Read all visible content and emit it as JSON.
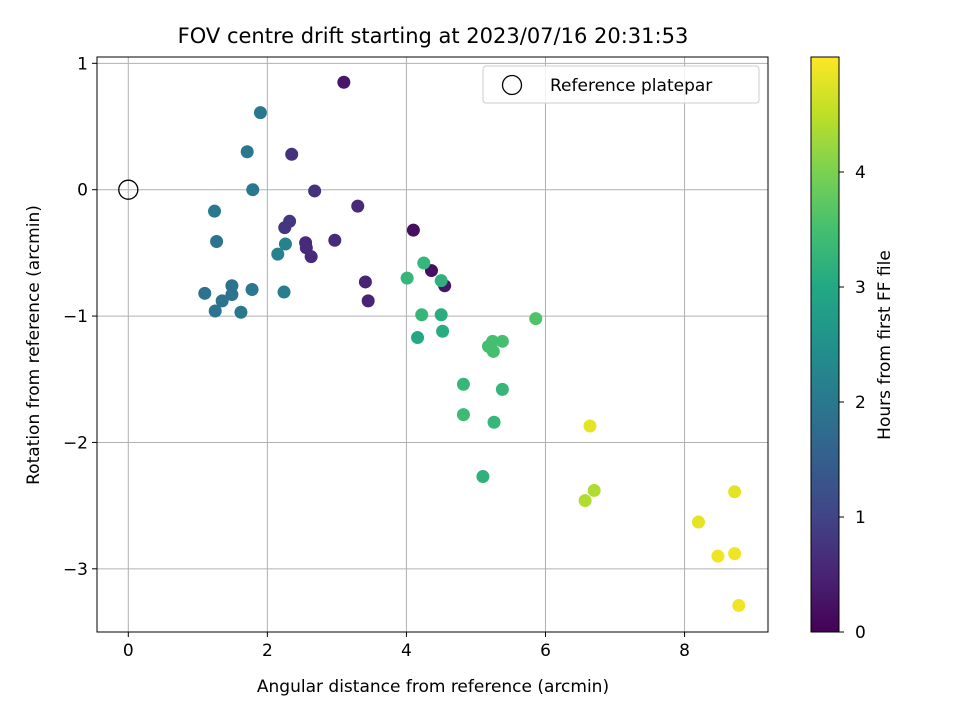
{
  "chart_data": {
    "type": "scatter",
    "title": "FOV centre drift starting at 2023/07/16 20:31:53",
    "xlabel": "Angular distance from reference (arcmin)",
    "ylabel": "Rotation from reference (arcmin)",
    "xlim": [
      -0.45,
      9.2
    ],
    "ylim": [
      -3.5,
      1.05
    ],
    "xticks": [
      0,
      2,
      4,
      6,
      8
    ],
    "yticks": [
      -3,
      -2,
      -1,
      0,
      1
    ],
    "xtick_labels": [
      "0",
      "2",
      "4",
      "6",
      "8"
    ],
    "ytick_labels": [
      "−3",
      "−2",
      "−1",
      "0",
      "1"
    ],
    "grid": true,
    "legend": {
      "placement": "top-right",
      "entries": [
        "Reference platepar"
      ]
    },
    "reference_point": {
      "x": 0,
      "y": 0,
      "marker": "open-circle"
    },
    "colormap": "viridis",
    "colorbar": {
      "label": "Hours from first FF file",
      "range": [
        0,
        5
      ],
      "ticks": [
        0,
        1,
        2,
        3,
        4
      ],
      "tick_labels": [
        "0",
        "1",
        "2",
        "3",
        "4"
      ]
    },
    "points": [
      {
        "x": 3.1,
        "y": 0.85,
        "h": 0.3
      },
      {
        "x": 2.35,
        "y": 0.28,
        "h": 0.7
      },
      {
        "x": 2.68,
        "y": -0.01,
        "h": 0.7
      },
      {
        "x": 3.3,
        "y": -0.13,
        "h": 0.6
      },
      {
        "x": 2.32,
        "y": -0.25,
        "h": 0.8
      },
      {
        "x": 2.25,
        "y": -0.3,
        "h": 0.8
      },
      {
        "x": 2.55,
        "y": -0.42,
        "h": 0.6
      },
      {
        "x": 2.56,
        "y": -0.46,
        "h": 0.6
      },
      {
        "x": 2.97,
        "y": -0.4,
        "h": 0.6
      },
      {
        "x": 2.63,
        "y": -0.53,
        "h": 0.6
      },
      {
        "x": 3.41,
        "y": -0.73,
        "h": 0.5
      },
      {
        "x": 3.45,
        "y": -0.88,
        "h": 0.5
      },
      {
        "x": 4.1,
        "y": -0.32,
        "h": 0.2
      },
      {
        "x": 4.36,
        "y": -0.64,
        "h": 0.2
      },
      {
        "x": 4.55,
        "y": -0.76,
        "h": 0.3
      },
      {
        "x": 1.9,
        "y": 0.61,
        "h": 2.0
      },
      {
        "x": 1.71,
        "y": 0.3,
        "h": 2.0
      },
      {
        "x": 1.79,
        "y": 0.0,
        "h": 2.0
      },
      {
        "x": 1.24,
        "y": -0.17,
        "h": 2.0
      },
      {
        "x": 1.27,
        "y": -0.41,
        "h": 1.9
      },
      {
        "x": 2.26,
        "y": -0.43,
        "h": 2.2
      },
      {
        "x": 2.15,
        "y": -0.51,
        "h": 2.2
      },
      {
        "x": 1.78,
        "y": -0.79,
        "h": 2.0
      },
      {
        "x": 2.24,
        "y": -0.81,
        "h": 2.1
      },
      {
        "x": 1.1,
        "y": -0.82,
        "h": 1.9
      },
      {
        "x": 1.49,
        "y": -0.76,
        "h": 1.9
      },
      {
        "x": 1.49,
        "y": -0.83,
        "h": 1.9
      },
      {
        "x": 1.35,
        "y": -0.88,
        "h": 1.9
      },
      {
        "x": 1.25,
        "y": -0.96,
        "h": 1.9
      },
      {
        "x": 1.62,
        "y": -0.97,
        "h": 2.0
      },
      {
        "x": 4.01,
        "y": -0.7,
        "h": 3.3
      },
      {
        "x": 4.25,
        "y": -0.58,
        "h": 3.3
      },
      {
        "x": 4.5,
        "y": -0.72,
        "h": 3.2
      },
      {
        "x": 4.22,
        "y": -0.99,
        "h": 3.3
      },
      {
        "x": 4.5,
        "y": -0.99,
        "h": 3.1
      },
      {
        "x": 4.52,
        "y": -1.12,
        "h": 3.1
      },
      {
        "x": 4.16,
        "y": -1.17,
        "h": 3.0
      },
      {
        "x": 5.86,
        "y": -1.02,
        "h": 3.6
      },
      {
        "x": 5.24,
        "y": -1.2,
        "h": 3.5
      },
      {
        "x": 5.18,
        "y": -1.24,
        "h": 3.5
      },
      {
        "x": 5.25,
        "y": -1.28,
        "h": 3.5
      },
      {
        "x": 5.38,
        "y": -1.2,
        "h": 3.5
      },
      {
        "x": 4.82,
        "y": -1.54,
        "h": 3.3
      },
      {
        "x": 5.38,
        "y": -1.58,
        "h": 3.3
      },
      {
        "x": 4.82,
        "y": -1.78,
        "h": 3.4
      },
      {
        "x": 5.26,
        "y": -1.84,
        "h": 3.3
      },
      {
        "x": 5.1,
        "y": -2.27,
        "h": 3.2
      },
      {
        "x": 6.64,
        "y": -1.87,
        "h": 4.8
      },
      {
        "x": 6.57,
        "y": -2.46,
        "h": 4.4
      },
      {
        "x": 6.7,
        "y": -2.38,
        "h": 4.4
      },
      {
        "x": 8.72,
        "y": -2.39,
        "h": 4.8
      },
      {
        "x": 8.2,
        "y": -2.63,
        "h": 4.8
      },
      {
        "x": 8.48,
        "y": -2.9,
        "h": 4.9
      },
      {
        "x": 8.72,
        "y": -2.88,
        "h": 4.9
      },
      {
        "x": 8.78,
        "y": -3.29,
        "h": 4.9
      }
    ]
  }
}
